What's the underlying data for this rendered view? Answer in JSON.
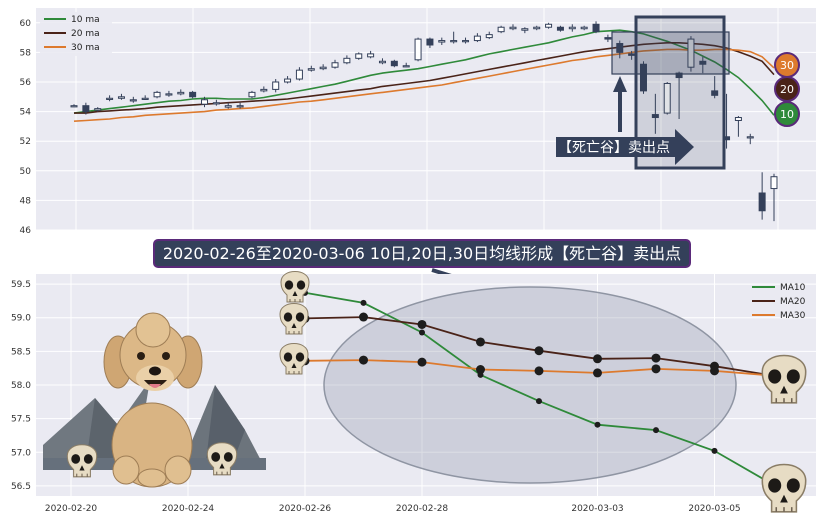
{
  "banner": {
    "text": "2020-02-26至2020-03-06 10日,20日,30日均线形成【死亡谷】卖出点"
  },
  "callout": {
    "text": "【死亡谷】卖出点"
  },
  "badges": [
    {
      "label": "30",
      "color": "#dd7a2e"
    },
    {
      "label": "20",
      "color": "#4a2318"
    },
    {
      "label": "10",
      "color": "#2f8a3a"
    }
  ],
  "colors": {
    "ma10": "#2f8a3a",
    "ma20": "#4a2318",
    "ma30": "#dd7a2e",
    "candle": "#34405a",
    "highlight": "#34405a"
  },
  "chart_data": [
    {
      "type": "candlestick",
      "ylim": [
        46,
        61
      ],
      "yticks": [
        "46",
        "48",
        "50",
        "52",
        "54",
        "56",
        "58",
        "60"
      ],
      "grid": true,
      "legend": {
        "placement": "top-left",
        "entries": [
          "10 ma",
          "20 ma",
          "30 ma"
        ]
      },
      "candles": [
        [
          54.4,
          54.4,
          54.3,
          54.5
        ],
        [
          54.4,
          54.0,
          53.8,
          54.6
        ],
        [
          54.1,
          54.2,
          54.0,
          54.3
        ],
        [
          54.9,
          54.9,
          54.7,
          55.1
        ],
        [
          54.9,
          55.0,
          54.8,
          55.2
        ],
        [
          54.8,
          54.8,
          54.6,
          55.0
        ],
        [
          54.9,
          54.9,
          54.8,
          55.1
        ],
        [
          55.0,
          55.3,
          54.9,
          55.4
        ],
        [
          55.2,
          55.2,
          55.0,
          55.4
        ],
        [
          55.2,
          55.3,
          55.1,
          55.5
        ],
        [
          55.3,
          55.0,
          54.9,
          55.4
        ],
        [
          54.5,
          54.8,
          54.3,
          55.0
        ],
        [
          54.6,
          54.6,
          54.4,
          54.8
        ],
        [
          54.3,
          54.4,
          54.2,
          54.6
        ],
        [
          54.4,
          54.4,
          54.2,
          54.6
        ],
        [
          55.0,
          55.3,
          54.9,
          55.4
        ],
        [
          55.4,
          55.5,
          55.3,
          55.7
        ],
        [
          55.5,
          56.0,
          55.3,
          56.2
        ],
        [
          56.0,
          56.2,
          55.9,
          56.4
        ],
        [
          56.2,
          56.8,
          56.1,
          57.0
        ],
        [
          56.8,
          56.9,
          56.7,
          57.1
        ],
        [
          56.9,
          57.0,
          56.8,
          57.2
        ],
        [
          57.0,
          57.3,
          56.9,
          57.5
        ],
        [
          57.3,
          57.6,
          57.2,
          57.8
        ],
        [
          57.6,
          57.9,
          57.5,
          58.0
        ],
        [
          57.7,
          57.9,
          57.6,
          58.1
        ],
        [
          57.3,
          57.4,
          57.2,
          57.6
        ],
        [
          57.4,
          57.1,
          57.0,
          57.5
        ],
        [
          57.1,
          57.1,
          57.0,
          57.3
        ],
        [
          57.5,
          58.9,
          57.4,
          59.0
        ],
        [
          58.9,
          58.5,
          58.3,
          59.0
        ],
        [
          58.7,
          58.8,
          58.5,
          59.0
        ],
        [
          58.8,
          58.8,
          58.6,
          59.4
        ],
        [
          58.8,
          58.8,
          58.6,
          59.0
        ],
        [
          58.8,
          59.1,
          58.7,
          59.3
        ],
        [
          59.0,
          59.2,
          58.9,
          59.4
        ],
        [
          59.4,
          59.7,
          59.3,
          59.8
        ],
        [
          59.6,
          59.7,
          59.5,
          59.9
        ],
        [
          59.5,
          59.6,
          59.3,
          59.7
        ],
        [
          59.6,
          59.7,
          59.5,
          59.8
        ],
        [
          59.7,
          59.9,
          59.6,
          60.0
        ],
        [
          59.7,
          59.5,
          59.4,
          59.8
        ],
        [
          59.6,
          59.7,
          59.4,
          59.9
        ],
        [
          59.6,
          59.7,
          59.5,
          59.8
        ],
        [
          59.9,
          59.4,
          59.3,
          60.1
        ],
        [
          59.0,
          58.9,
          58.7,
          59.2
        ],
        [
          58.6,
          58.0,
          57.6,
          58.8
        ],
        [
          57.9,
          57.8,
          57.5,
          58.1
        ],
        [
          57.2,
          55.4,
          55.2,
          57.4
        ],
        [
          53.8,
          53.6,
          52.5,
          55.2
        ],
        [
          53.9,
          55.9,
          53.8,
          56.0
        ],
        [
          56.6,
          56.3,
          53.5,
          56.7
        ],
        [
          57.0,
          58.9,
          56.7,
          59.1
        ],
        [
          57.4,
          57.2,
          56.6,
          57.7
        ],
        [
          55.4,
          55.1,
          54.9,
          56.4
        ],
        [
          52.3,
          52.1,
          51.5,
          55.2
        ],
        [
          53.4,
          53.6,
          52.3,
          53.7
        ],
        [
          52.3,
          52.3,
          51.8,
          52.5
        ],
        [
          48.5,
          47.3,
          46.7,
          49.9
        ],
        [
          48.8,
          49.6,
          46.6,
          49.8
        ]
      ],
      "series": [
        {
          "name": "10 ma",
          "values": [
            53.9,
            54.0,
            54.1,
            54.2,
            54.3,
            54.4,
            54.5,
            54.6,
            54.7,
            54.75,
            54.85,
            54.9,
            54.9,
            54.85,
            54.85,
            54.85,
            54.95,
            55.1,
            55.25,
            55.4,
            55.55,
            55.7,
            55.85,
            56.05,
            56.25,
            56.45,
            56.6,
            56.7,
            56.8,
            56.9,
            57.05,
            57.2,
            57.35,
            57.5,
            57.7,
            57.9,
            58.05,
            58.2,
            58.35,
            58.5,
            58.65,
            58.85,
            59.05,
            59.2,
            59.4,
            59.45,
            59.5,
            59.4,
            59.25,
            59.0,
            58.75,
            58.45,
            58.15,
            57.75,
            57.35,
            56.85,
            56.3,
            55.55,
            54.75,
            53.75
          ]
        },
        {
          "name": "20 ma",
          "values": [
            53.9,
            53.9,
            54.0,
            54.05,
            54.1,
            54.15,
            54.2,
            54.3,
            54.35,
            54.4,
            54.45,
            54.5,
            54.55,
            54.6,
            54.65,
            54.7,
            54.75,
            54.8,
            54.85,
            54.95,
            55.05,
            55.15,
            55.25,
            55.35,
            55.45,
            55.55,
            55.7,
            55.8,
            55.9,
            56.0,
            56.1,
            56.25,
            56.4,
            56.55,
            56.7,
            56.85,
            57.0,
            57.15,
            57.3,
            57.45,
            57.6,
            57.75,
            57.9,
            58.05,
            58.15,
            58.25,
            58.35,
            58.45,
            58.55,
            58.6,
            58.65,
            58.65,
            58.6,
            58.55,
            58.45,
            58.3,
            58.05,
            57.75,
            57.4,
            56.5
          ]
        },
        {
          "name": "30 ma",
          "values": [
            53.35,
            53.4,
            53.45,
            53.5,
            53.6,
            53.65,
            53.75,
            53.8,
            53.85,
            53.9,
            53.95,
            54.0,
            54.1,
            54.15,
            54.2,
            54.25,
            54.35,
            54.45,
            54.55,
            54.65,
            54.7,
            54.8,
            54.9,
            55.0,
            55.1,
            55.2,
            55.3,
            55.4,
            55.5,
            55.6,
            55.7,
            55.8,
            55.95,
            56.1,
            56.25,
            56.4,
            56.55,
            56.7,
            56.85,
            57.0,
            57.15,
            57.3,
            57.45,
            57.55,
            57.7,
            57.8,
            57.9,
            58.0,
            58.1,
            58.15,
            58.2,
            58.2,
            58.15,
            58.15,
            58.2,
            58.2,
            58.15,
            58.05,
            57.7,
            56.95
          ]
        }
      ]
    },
    {
      "type": "line",
      "ylim": [
        56.35,
        59.65
      ],
      "yticks": [
        "56.5",
        "57.0",
        "57.5",
        "58.0",
        "58.5",
        "59.0",
        "59.5"
      ],
      "xticks": [
        "2020-02-20",
        "2020-02-24",
        "2020-02-26",
        "2020-02-28",
        "2020-03-03",
        "2020-03-05"
      ],
      "grid": true,
      "legend": {
        "placement": "top-right",
        "entries": [
          "MA10",
          "MA20",
          "MA30"
        ]
      },
      "series": [
        {
          "name": "MA10",
          "x": [
            0,
            1,
            2,
            3,
            4,
            5,
            6,
            7,
            8
          ],
          "values": [
            59.37,
            59.22,
            58.78,
            58.15,
            57.76,
            57.41,
            57.33,
            57.02,
            56.52
          ]
        },
        {
          "name": "MA20",
          "x": [
            0,
            1,
            2,
            3,
            4,
            5,
            6,
            7,
            8
          ],
          "values": [
            58.99,
            59.01,
            58.9,
            58.64,
            58.51,
            58.39,
            58.4,
            58.28,
            58.14
          ]
        },
        {
          "name": "MA30",
          "x": [
            0,
            1,
            2,
            3,
            4,
            5,
            6,
            7,
            8
          ],
          "values": [
            58.36,
            58.37,
            58.34,
            58.23,
            58.21,
            58.18,
            58.24,
            58.21,
            58.14
          ]
        }
      ]
    }
  ]
}
